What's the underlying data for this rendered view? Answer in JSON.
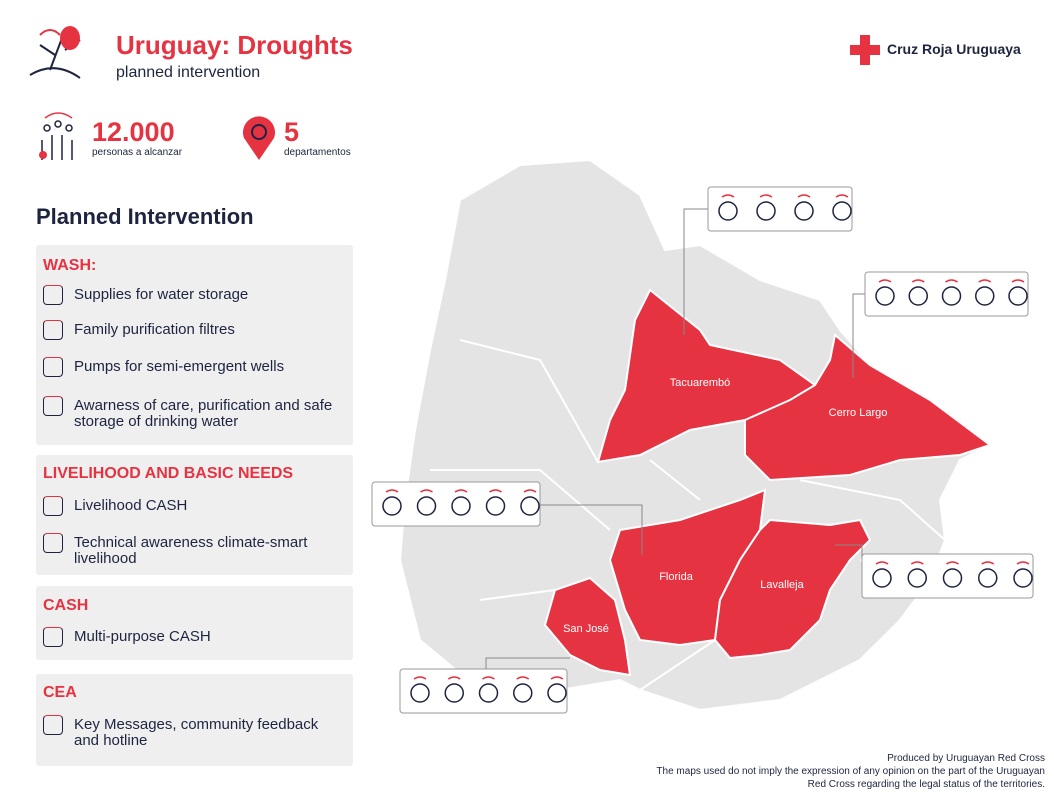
{
  "header": {
    "title": "Uruguay: Droughts",
    "subtitle": "planned intervention",
    "organization": "Cruz Roja Uruguaya"
  },
  "stats": [
    {
      "value": "12.000",
      "label": "personas a alcanzar"
    },
    {
      "value": "5",
      "label": "departamentos"
    }
  ],
  "section_title": "Planned Intervention",
  "sections": [
    {
      "title": "WASH:",
      "items": [
        "Supplies for water storage",
        "Family purification filtres",
        "Pumps for semi-emergent wells",
        "Awarness of care, purification and safe storage of drinking water"
      ]
    },
    {
      "title": "LIVELIHOOD AND BASIC NEEDS",
      "items": [
        "Livelihood CASH",
        "Technical awareness climate-smart livelihood"
      ]
    },
    {
      "title": "CASH",
      "items": [
        "Multi-purpose CASH"
      ]
    },
    {
      "title": "CEA",
      "items": [
        "Key Messages, community feedback and hotline"
      ]
    }
  ],
  "departments": [
    "Tacuarembó",
    "Cerro Largo",
    "Florida",
    "Lavalleja",
    "San José"
  ],
  "footer": [
    "Produced by Uruguayan Red Cross",
    "The maps used do not imply the expression of any opinion on the part of the Uruguayan",
    "Red Cross regarding the legal status of the territories."
  ]
}
